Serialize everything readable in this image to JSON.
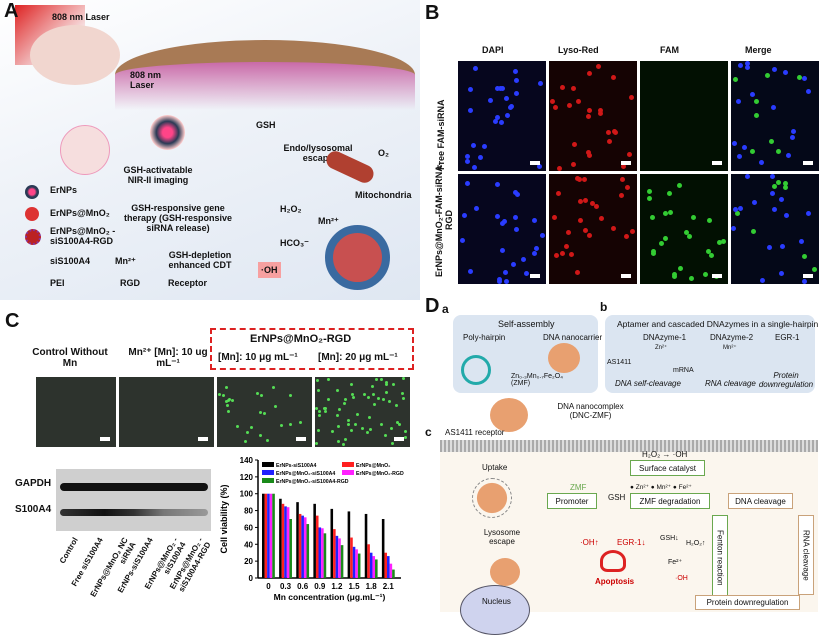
{
  "panel_labels": {
    "a": "A",
    "b": "B",
    "c": "C",
    "d": "D",
    "da": "a",
    "db": "b",
    "dc": "c"
  },
  "panelA": {
    "laser_top": "808 nm Laser",
    "laser_mid": "808 nm Laser",
    "gsh": "GSH",
    "endo": "Endo/lysosomal escape",
    "o2": "O₂",
    "mito": "Mitochondria",
    "imaging": "GSH-activatable NIR-II imaging",
    "gene": "GSH-responsive gene therapy (GSH-responsive siRNA release)",
    "h2o2": "H₂O₂",
    "mn": "Mn²⁺",
    "hco3": "HCO₃⁻",
    "cdt": "GSH-depletion enhanced CDT",
    "oh": "·OH",
    "legend": [
      "ErNPs",
      "ErNPs@MnO₂",
      "ErNPs@MnO₂ -siS100A4-RGD",
      "siS100A4",
      "Mn²⁺",
      "PEI",
      "RGD",
      "Receptor"
    ]
  },
  "panelB": {
    "columns": [
      "DAPI",
      "Lyso-Red",
      "FAM",
      "Merge"
    ],
    "rows": [
      "Free FAM-siRNA",
      "ErNPs@MnO₂-FAM-siRNA-RGD"
    ],
    "colors": {
      "DAPI": "#2a3cff",
      "Lyso-Red": "#d01818",
      "FAM": "#33cc33"
    }
  },
  "panelC": {
    "groups": [
      "Control Without Mn",
      "Mn²⁺ [Mn]: 10 ug mL⁻¹",
      "[Mn]: 10 μg mL⁻¹",
      "[Mn]: 20 μg mL⁻¹"
    ],
    "highlight_title": "ErNPs@MnO₂-RGD",
    "blot_rows": [
      "GAPDH",
      "S100A4"
    ],
    "blot_lanes": [
      "Control",
      "Free siS100A4",
      "ErNPs@MnO₂ NC siRNA",
      "ErNPs-siS100A4",
      "ErNPs@MnO₂ -siS100A4",
      "ErNPs@MnO₂ -siS100A4-RGD"
    ]
  },
  "chart_data": {
    "type": "bar",
    "xlabel": "Mn concentration (μg.mL⁻¹)",
    "ylabel": "Cell viability (%)",
    "ylim": [
      0,
      140
    ],
    "yticks": [
      0,
      20,
      40,
      60,
      80,
      100,
      120,
      140
    ],
    "categories": [
      "0",
      "0.3",
      "0.6",
      "0.9",
      "1.2",
      "1.5",
      "1.8",
      "2.1"
    ],
    "legend": "top",
    "series": [
      {
        "name": "ErNPs-siS100A4",
        "color": "#000000",
        "values": [
          100,
          94,
          90,
          88,
          82,
          79,
          76,
          70
        ]
      },
      {
        "name": "ErNPs@MnO₂",
        "color": "#ff2020",
        "values": [
          100,
          88,
          76,
          74,
          58,
          48,
          40,
          30
        ]
      },
      {
        "name": "ErNPs@MnO₂-siS100A4",
        "color": "#2020ff",
        "values": [
          100,
          85,
          74,
          60,
          50,
          37,
          30,
          26
        ]
      },
      {
        "name": "ErNPs@MnO₂-RGD",
        "color": "#ff20ff",
        "values": [
          100,
          84,
          72,
          59,
          47,
          34,
          26,
          17
        ]
      },
      {
        "name": "ErNPs@MnO₂-siS100A4-RGD",
        "color": "#1a8a1a",
        "values": [
          100,
          70,
          64,
          53,
          39,
          29,
          22,
          10
        ]
      }
    ]
  },
  "panelD": {
    "a_title": "Self-assembly",
    "poly": "Poly-hairpin",
    "carrier": "DNA nanocarrier",
    "zmf": "Zn₀.₃Mn₀.₇Fe₂O₄ (ZMF)",
    "b_title": "Aptamer and cascaded DNAzymes in a single-hairpin",
    "dz1": "DNAzyme-1",
    "dz2": "DNAzyme-2",
    "egr": "EGR-1",
    "zn": "Zn²⁺",
    "mn": "Mn²⁺",
    "as1411": "AS1411",
    "mrna": "mRNA",
    "self_cleave": "DNA self-cleavage",
    "rna_cleave": "RNA cleavage",
    "protein_down": "Protein downregulation",
    "complex": "DNA nanocomplex (DNC-ZMF)",
    "receptor": "AS1411 receptor",
    "uptake": "Uptake",
    "lyso": "Lysosome escape",
    "h2o2_oh": "H₂O₂ → ·OH",
    "surface": "Surface catalyst",
    "zmf_short": "ZMF",
    "ions": "● Zn²⁺  ● Mn²⁺  ● Fe²⁺",
    "promoter": "Promoter",
    "gsh": "GSH",
    "zmf_deg": "ZMF degradation",
    "dna_cleave": "DNA cleavage",
    "rna_box": "RNA cleavage",
    "fenton": "Fenton reaction",
    "gsh_down": "GSH↓",
    "h2o2_up": "H₂O₂↑",
    "fe": "Fe²⁺",
    "oh": "·OH",
    "oh_up": "·OH↑",
    "egr_down": "EGR-1↓",
    "apoptosis": "Apoptosis",
    "nucleus": "Nucleus",
    "protein_box": "Protein downregulation"
  }
}
